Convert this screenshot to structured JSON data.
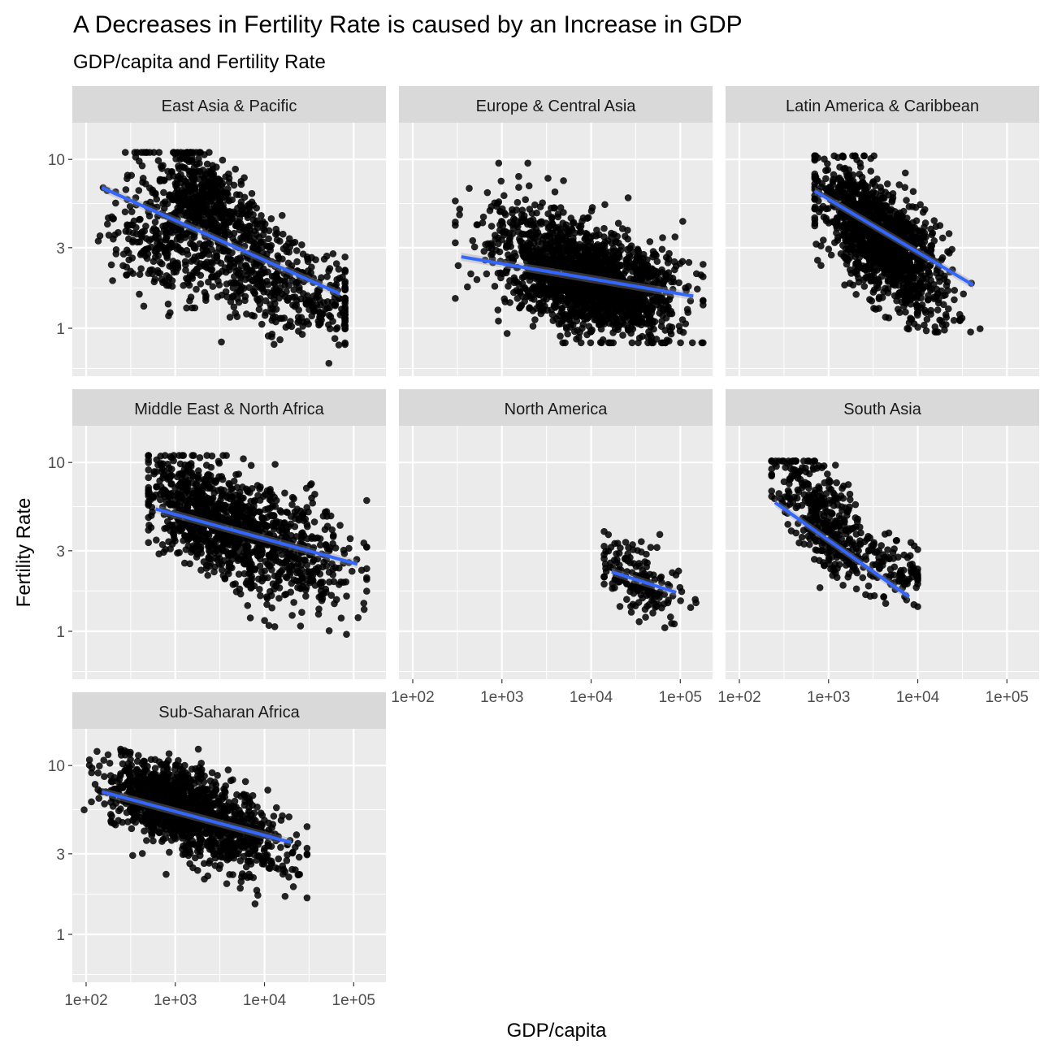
{
  "title": "A Decreases in Fertility Rate is caused by an Increase in GDP",
  "subtitle": "GDP/capita and Fertility Rate",
  "chart_data": {
    "type": "scatter",
    "facet_by": "region",
    "xlabel": "GDP/capita",
    "ylabel": "Fertility Rate",
    "x_scale": "log10",
    "y_scale": "log10",
    "xlim": [
      70,
      230000
    ],
    "ylim": [
      0.52,
      16.5
    ],
    "x_ticks": [
      100,
      1000,
      10000,
      100000
    ],
    "x_tick_labels": [
      "1e+02",
      "1e+03",
      "1e+04",
      "1e+05"
    ],
    "y_ticks": [
      1,
      3,
      10
    ],
    "y_tick_labels": [
      "1",
      "3",
      "10"
    ],
    "grid": true,
    "colors": {
      "panel": "#ebebeb",
      "strip": "#d9d9d9",
      "grid_major": "#ffffff",
      "points": "#000000",
      "fit_line": "#3366ff",
      "ribbon": "#999999"
    },
    "panels": [
      {
        "label": "East Asia & Pacific",
        "cloud": [
          {
            "n": 600,
            "x_center": 2400,
            "x_spread": 0.34,
            "y_center": 5.2,
            "y_spread": 0.15,
            "slope": -0.3
          },
          {
            "n": 260,
            "x_center": 700,
            "x_spread": 0.3,
            "y_center": 3.0,
            "y_spread": 0.14,
            "slope": -0.25
          },
          {
            "n": 380,
            "x_center": 20000,
            "x_spread": 0.45,
            "y_center": 1.7,
            "y_spread": 0.14,
            "slope": -0.15
          }
        ],
        "x_range": [
          100,
          80000
        ],
        "y_range": [
          0.62,
          11
        ],
        "fit_line": {
          "x": [
            150,
            70000
          ],
          "y": [
            6.8,
            1.6
          ]
        }
      },
      {
        "label": "Europe & Central Asia",
        "cloud": [
          {
            "n": 1500,
            "x_center": 12000,
            "x_spread": 0.42,
            "y_center": 1.8,
            "y_spread": 0.14,
            "slope": -0.08
          },
          {
            "n": 350,
            "x_center": 2500,
            "x_spread": 0.4,
            "y_center": 3.0,
            "y_spread": 0.16,
            "slope": -0.1
          }
        ],
        "x_range": [
          300,
          180000
        ],
        "y_range": [
          0.82,
          9.5
        ],
        "fit_line": {
          "x": [
            350,
            140000
          ],
          "y": [
            2.65,
            1.55
          ]
        }
      },
      {
        "label": "Latin America & Caribbean",
        "cloud": [
          {
            "n": 1500,
            "x_center": 4000,
            "x_spread": 0.33,
            "y_center": 3.3,
            "y_spread": 0.16,
            "slope": -0.38
          }
        ],
        "x_range": [
          700,
          50000
        ],
        "y_range": [
          0.95,
          10.5
        ],
        "fit_line": {
          "x": [
            700,
            42000
          ],
          "y": [
            6.5,
            1.8
          ]
        }
      },
      {
        "label": "Middle East & North Africa",
        "cloud": [
          {
            "n": 700,
            "x_center": 2500,
            "x_spread": 0.38,
            "y_center": 4.6,
            "y_spread": 0.15,
            "slope": -0.25
          },
          {
            "n": 500,
            "x_center": 15000,
            "x_spread": 0.45,
            "y_center": 3.2,
            "y_spread": 0.17,
            "slope": -0.2
          }
        ],
        "x_range": [
          500,
          140000
        ],
        "y_range": [
          0.9,
          11
        ],
        "fit_line": {
          "x": [
            600,
            110000
          ],
          "y": [
            5.3,
            2.5
          ]
        }
      },
      {
        "label": "North America",
        "cloud": [
          {
            "n": 170,
            "x_center": 35000,
            "x_spread": 0.23,
            "y_center": 2.0,
            "y_spread": 0.1,
            "slope": -0.3
          }
        ],
        "x_range": [
          14000,
          150000
        ],
        "y_range": [
          1.05,
          4.5
        ],
        "fit_line": {
          "x": [
            17000,
            90000
          ],
          "y": [
            2.25,
            1.7
          ]
        }
      },
      {
        "label": "South Asia",
        "cloud": [
          {
            "n": 420,
            "x_center": 900,
            "x_spread": 0.3,
            "y_center": 4.6,
            "y_spread": 0.15,
            "slope": -0.45
          },
          {
            "n": 80,
            "x_center": 6000,
            "x_spread": 0.18,
            "y_center": 2.3,
            "y_spread": 0.1,
            "slope": -0.2
          }
        ],
        "x_range": [
          230,
          10000
        ],
        "y_range": [
          1.4,
          10.2
        ],
        "fit_line": {
          "x": [
            250,
            8000
          ],
          "y": [
            5.8,
            1.6
          ]
        }
      },
      {
        "label": "Sub-Saharan Africa",
        "cloud": [
          {
            "n": 1100,
            "x_center": 900,
            "x_spread": 0.35,
            "y_center": 6.0,
            "y_spread": 0.11,
            "slope": -0.15
          },
          {
            "n": 350,
            "x_center": 5000,
            "x_spread": 0.35,
            "y_center": 3.8,
            "y_spread": 0.14,
            "slope": -0.2
          }
        ],
        "x_range": [
          95,
          30000
        ],
        "y_range": [
          0.9,
          12.5
        ],
        "fit_line": {
          "x": [
            150,
            20000
          ],
          "y": [
            7.0,
            3.5
          ]
        }
      }
    ]
  }
}
